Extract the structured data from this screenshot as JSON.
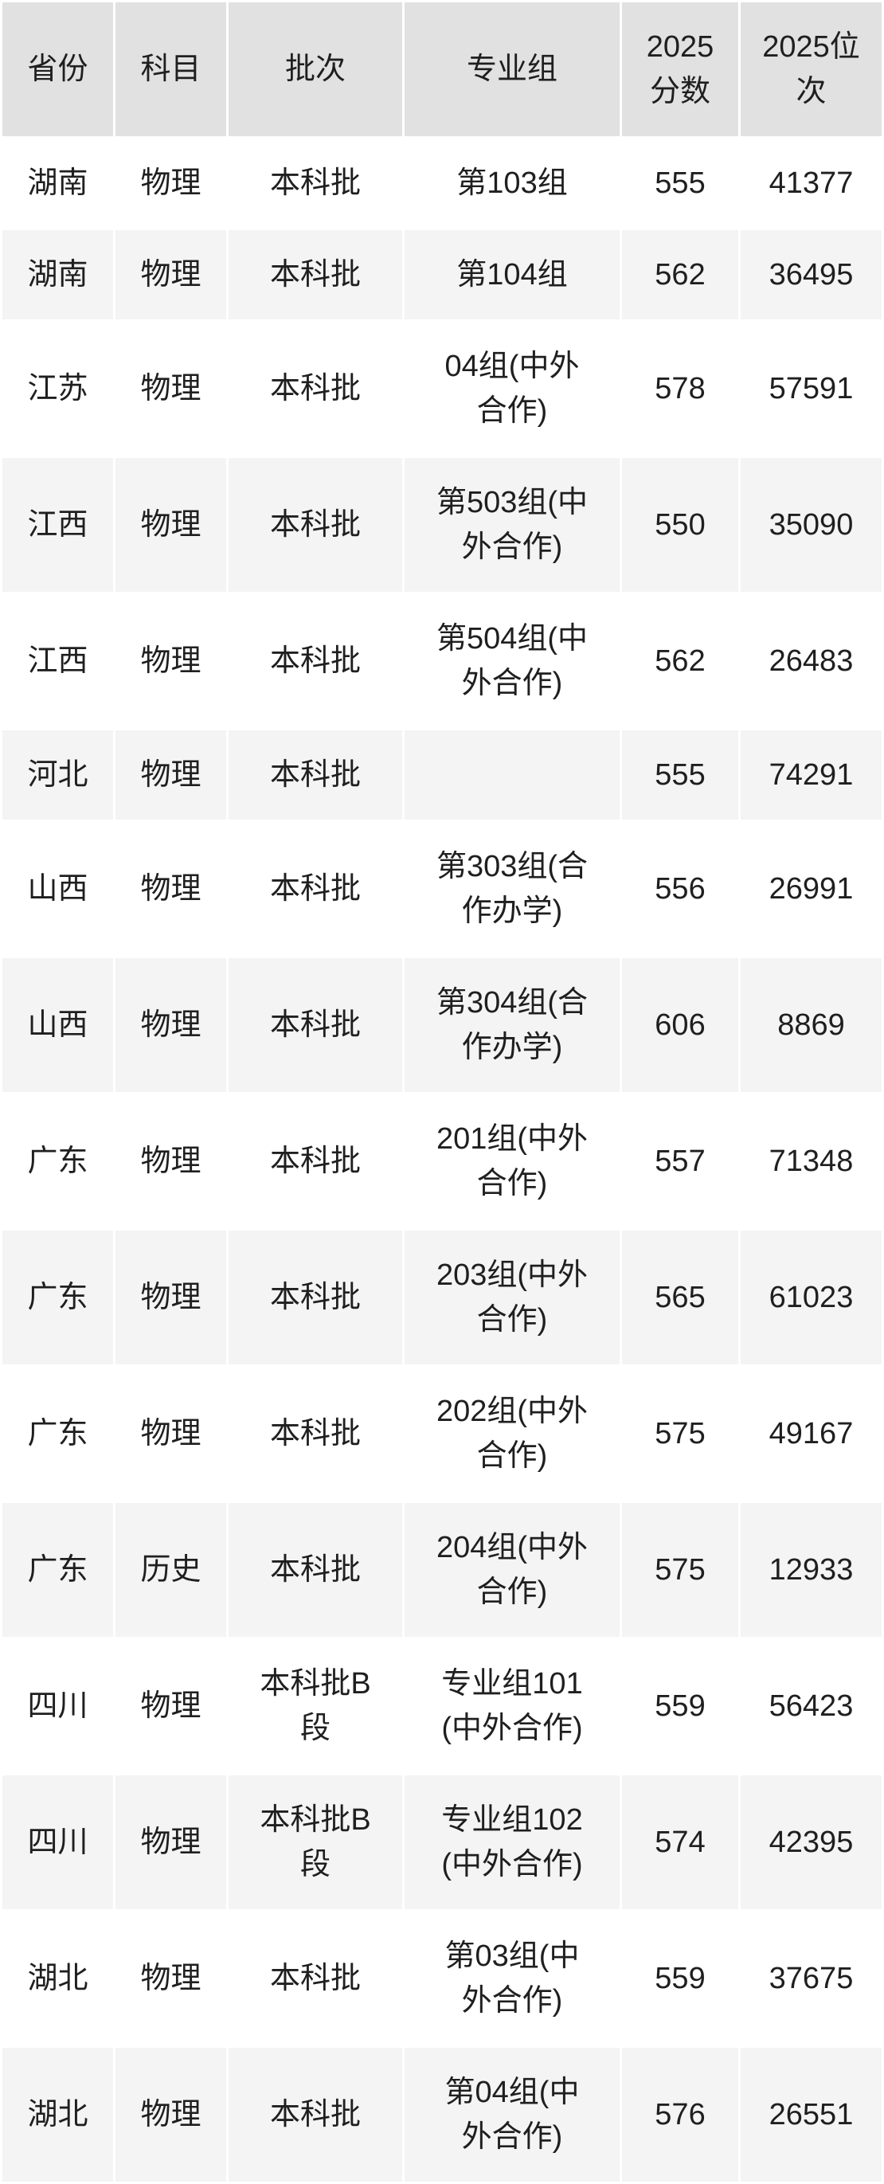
{
  "table": {
    "headers": [
      "省份",
      "科目",
      "批次",
      "专业组",
      "2025分数",
      "2025位次"
    ],
    "rows": [
      [
        "湖南",
        "物理",
        "本科批",
        "第103组",
        "555",
        "41377"
      ],
      [
        "湖南",
        "物理",
        "本科批",
        "第104组",
        "562",
        "36495"
      ],
      [
        "江苏",
        "物理",
        "本科批",
        "04组(中外合作)",
        "578",
        "57591"
      ],
      [
        "江西",
        "物理",
        "本科批",
        "第503组(中外合作)",
        "550",
        "35090"
      ],
      [
        "江西",
        "物理",
        "本科批",
        "第504组(中外合作)",
        "562",
        "26483"
      ],
      [
        "河北",
        "物理",
        "本科批",
        "",
        "555",
        "74291"
      ],
      [
        "山西",
        "物理",
        "本科批",
        "第303组(合作办学)",
        "556",
        "26991"
      ],
      [
        "山西",
        "物理",
        "本科批",
        "第304组(合作办学)",
        "606",
        "8869"
      ],
      [
        "广东",
        "物理",
        "本科批",
        "201组(中外合作)",
        "557",
        "71348"
      ],
      [
        "广东",
        "物理",
        "本科批",
        "203组(中外合作)",
        "565",
        "61023"
      ],
      [
        "广东",
        "物理",
        "本科批",
        "202组(中外合作)",
        "575",
        "49167"
      ],
      [
        "广东",
        "历史",
        "本科批",
        "204组(中外合作)",
        "575",
        "12933"
      ],
      [
        "四川",
        "物理",
        "本科批B段",
        "专业组101(中外合作)",
        "559",
        "56423"
      ],
      [
        "四川",
        "物理",
        "本科批B段",
        "专业组102(中外合作)",
        "574",
        "42395"
      ],
      [
        "湖北",
        "物理",
        "本科批",
        "第03组(中外合作)",
        "559",
        "37675"
      ],
      [
        "湖北",
        "物理",
        "本科批",
        "第04组(中外合作)",
        "576",
        "26551"
      ]
    ],
    "colors": {
      "header_bg": "#e1e1e1",
      "row_bg": "#ffffff",
      "row_alt_bg": "#f4f4f5",
      "text": "#1f1f1f"
    }
  }
}
